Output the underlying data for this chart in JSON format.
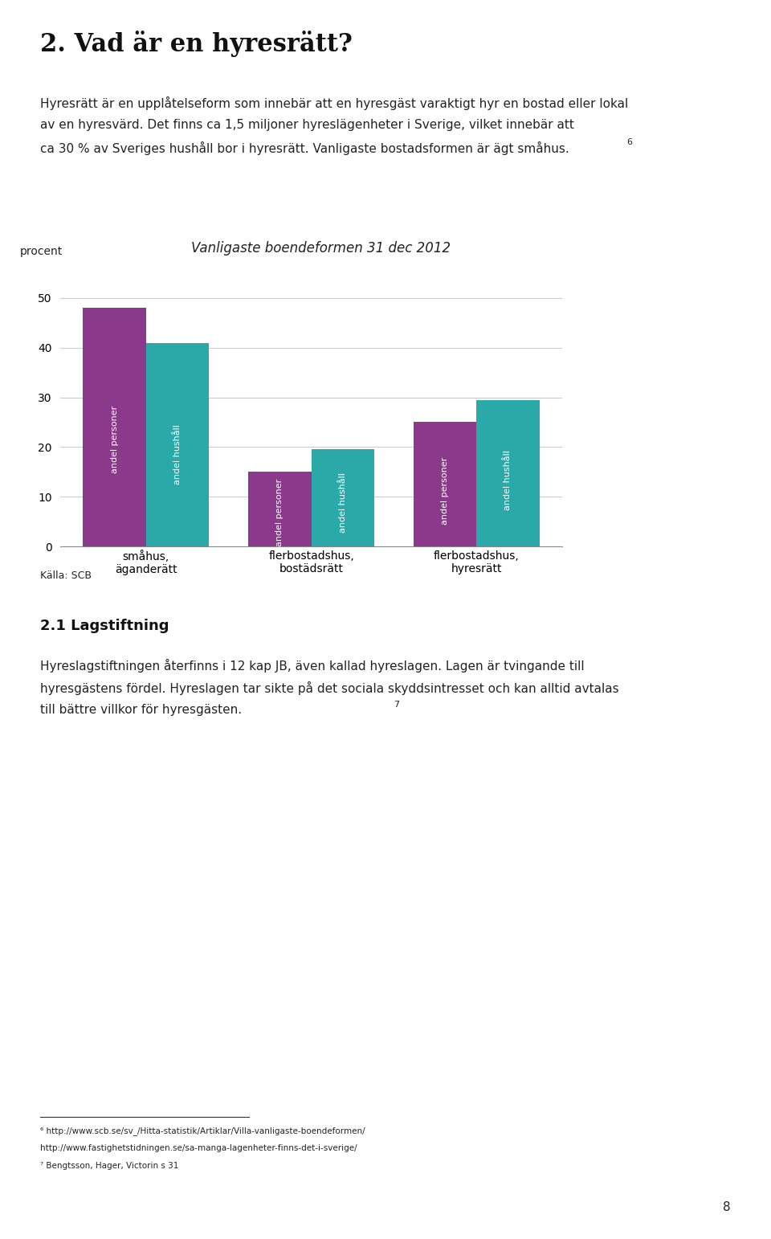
{
  "title": "Vanligaste boendeformen 31 dec 2012",
  "ylabel": "procent",
  "ylim": [
    0,
    55
  ],
  "yticks": [
    0,
    10,
    20,
    30,
    40,
    50
  ],
  "categories": [
    "småhus,\näganderätt",
    "flerbostadshus,\nbostädsrätt",
    "flerbostadshus,\nhyresrätt"
  ],
  "series": [
    {
      "label": "andel personer",
      "values": [
        48.0,
        15.0,
        25.0
      ],
      "color": "#8b3a8b"
    },
    {
      "label": "andel hushåll",
      "values": [
        41.0,
        19.5,
        29.5
      ],
      "color": "#2ba8a8"
    }
  ],
  "bar_width": 0.38,
  "source": "Källa: SCB",
  "background_color": "#ffffff",
  "grid_color": "#cccccc",
  "title_fontsize": 12,
  "axis_fontsize": 10,
  "tick_fontsize": 10,
  "source_fontsize": 9,
  "bar_label_fontsize": 8,
  "bar_label_color": "#ffffff",
  "page_title": "2. Vad är en hyresrätt?",
  "para1_line1": "Hyresrätt är en upplåtelseform som innebär att en hyresgäst varaktigt hyr en bostad eller lokal",
  "para1_line2": "av en hyresvärd. Det finns ca 1,5 miljoner hyreslägenheter i Sverige, vilket innebär att",
  "para1_line3": "ca 30 % av Sveriges hushåll bor i hyresrätt. Vanligaste bostadsformen är ägt småhus.",
  "superscript_6": "6",
  "section_title": "2.1 Lagstiftning",
  "para2_line1": "Hyreslagstiftningen återfinns i 12 kap JB, även kallad hyreslagen. Lagen är tvingande till",
  "para2_line2": "hyresgästens fördel. Hyreslagen tar sikte på det sociala skyddsintresset och kan alltid avtalas",
  "para2_line3": "till bättre villkor för hyresgästen.",
  "superscript_7": "7",
  "footnote1": "⁶ http://www.scb.se/sv_/Hitta-statistik/Artiklar/Villa-vanligaste-boendeformen/",
  "footnote2": "http://www.fastighetstidningen.se/sa-manga-lagenheter-finns-det-i-sverige/",
  "footnote3": "⁷ Bengtsson, Hager, Victorin s 31",
  "page_number": "8",
  "text_fontsize": 11,
  "heading_fontsize": 22,
  "section_fontsize": 13
}
